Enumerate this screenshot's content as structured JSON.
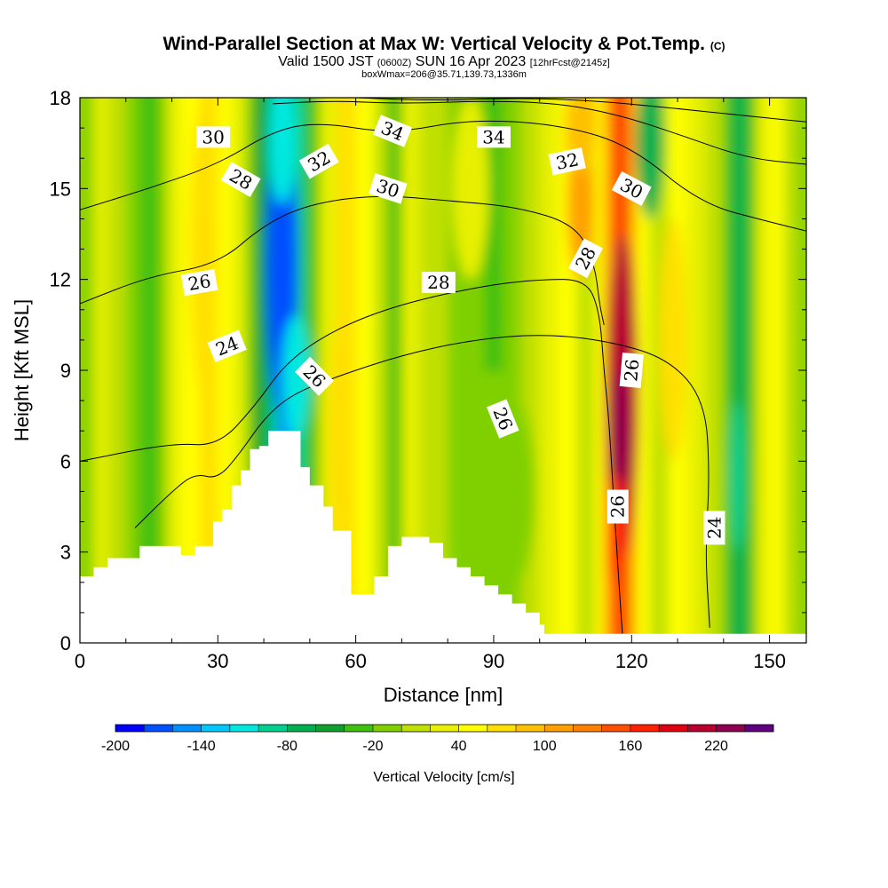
{
  "title": {
    "main": "Wind-Parallel Section at Max W: Vertical Velocity & Pot.Temp.",
    "main_tag": "(C)",
    "valid_a": "Valid 1500 JST",
    "valid_b": "(0600Z)",
    "valid_c": "SUN 16 Apr 2023",
    "valid_d": "[12hrFcst@2145z]",
    "sub": "boxWmax=206@35.71,139.73,1336m"
  },
  "chart_data": {
    "type": "heatmap",
    "xlabel": "Distance [nm]",
    "ylabel": "Height [Kft MSL]",
    "xlim": [
      0,
      158
    ],
    "ylim": [
      0,
      18
    ],
    "xticks": [
      "0",
      "30",
      "60",
      "90",
      "120",
      "150"
    ],
    "yticks": [
      "0",
      "3",
      "6",
      "9",
      "12",
      "15",
      "18"
    ],
    "colorbar": {
      "label": "Vertical Velocity [cm/s]",
      "min": -200,
      "max": 240,
      "step": 20,
      "tick_labels": [
        "-200",
        "-140",
        "-80",
        "-20",
        "40",
        "100",
        "160",
        "220"
      ],
      "colors": [
        "#0000ff",
        "#0050ff",
        "#0090ff",
        "#00c8ff",
        "#00e8e0",
        "#00d090",
        "#00b050",
        "#10a030",
        "#40c010",
        "#80d000",
        "#c0e000",
        "#e8f000",
        "#ffff00",
        "#ffe000",
        "#ffc000",
        "#ffa000",
        "#ff8000",
        "#ff5000",
        "#ff2000",
        "#e00010",
        "#b80030",
        "#900050",
        "#600080"
      ]
    },
    "updrafts_cm_s": [
      {
        "x": 118,
        "z_range": [
          2,
          14
        ],
        "peak": 230
      },
      {
        "x": 108,
        "z_range": [
          10,
          18
        ],
        "peak": 100
      }
    ],
    "downdrafts_cm_s": [
      {
        "x": 44,
        "z_range": [
          7,
          18
        ],
        "peak": -180
      },
      {
        "x": 143,
        "z_range": [
          2,
          12
        ],
        "peak": -90
      },
      {
        "x": 124,
        "z_range": [
          13,
          18
        ],
        "peak": -80
      }
    ],
    "terrain_kft": {
      "x": [
        0,
        3,
        6,
        9,
        13,
        16,
        19,
        22,
        25,
        28,
        29,
        31,
        33,
        35,
        37,
        39,
        41,
        45,
        48,
        50,
        53,
        55,
        59,
        61,
        64,
        67,
        70,
        73,
        76,
        79,
        82,
        85,
        88,
        91,
        94,
        97,
        100,
        101,
        158
      ],
      "z": [
        2.2,
        2.5,
        2.8,
        2.8,
        3.2,
        3.2,
        3.2,
        2.9,
        3.2,
        3.2,
        4.0,
        4.4,
        5.2,
        5.7,
        6.4,
        6.5,
        7.0,
        7.0,
        5.8,
        5.2,
        4.5,
        3.7,
        1.6,
        1.6,
        2.2,
        3.2,
        3.5,
        3.5,
        3.3,
        2.8,
        2.5,
        2.2,
        1.9,
        1.6,
        1.3,
        1.0,
        0.6,
        0.3,
        0.3
      ]
    },
    "theta_isolines_C": [
      {
        "level": 24,
        "points": [
          [
            12,
            3.8
          ],
          [
            20,
            5.0
          ],
          [
            25,
            5.6
          ],
          [
            30,
            5.4
          ],
          [
            35,
            6.3
          ],
          [
            40,
            7.4
          ],
          [
            46,
            8.2
          ],
          [
            56,
            8.8
          ],
          [
            70,
            9.5
          ],
          [
            85,
            10.0
          ],
          [
            100,
            10.2
          ],
          [
            114,
            10.0
          ],
          [
            128,
            9.4
          ],
          [
            136,
            8.0
          ],
          [
            137,
            5.5
          ],
          [
            136,
            3.0
          ],
          [
            137,
            0.5
          ]
        ]
      },
      {
        "level": 26,
        "points": [
          [
            0,
            6.0
          ],
          [
            20,
            6.6
          ],
          [
            30,
            6.5
          ],
          [
            38,
            7.8
          ],
          [
            45,
            9.3
          ],
          [
            56,
            10.4
          ],
          [
            70,
            11.2
          ],
          [
            88,
            11.8
          ],
          [
            100,
            12.0
          ],
          [
            110,
            12.0
          ],
          [
            113,
            11.0
          ],
          [
            114,
            9.0
          ],
          [
            115,
            7.5
          ],
          [
            116,
            5.0
          ],
          [
            117,
            2.5
          ],
          [
            118,
            0.3
          ]
        ]
      },
      {
        "level": 28,
        "points": [
          [
            0,
            11.2
          ],
          [
            15,
            12.1
          ],
          [
            30,
            12.5
          ],
          [
            40,
            13.8
          ],
          [
            50,
            14.5
          ],
          [
            65,
            14.8
          ],
          [
            80,
            14.6
          ],
          [
            95,
            14.4
          ],
          [
            108,
            13.8
          ],
          [
            112,
            12.5
          ],
          [
            113,
            11.2
          ],
          [
            114,
            10.5
          ]
        ]
      },
      {
        "level": 30,
        "points": [
          [
            0,
            14.3
          ],
          [
            15,
            15.0
          ],
          [
            30,
            15.8
          ],
          [
            42,
            16.9
          ],
          [
            52,
            17.2
          ],
          [
            68,
            16.8
          ],
          [
            85,
            17.3
          ],
          [
            105,
            17.1
          ],
          [
            120,
            16.4
          ],
          [
            135,
            14.5
          ],
          [
            150,
            13.9
          ],
          [
            158,
            13.6
          ]
        ]
      },
      {
        "level": 32,
        "points": [
          [
            42,
            17.8
          ],
          [
            55,
            17.9
          ],
          [
            70,
            17.8
          ],
          [
            90,
            17.9
          ],
          [
            105,
            17.8
          ],
          [
            118,
            17.4
          ],
          [
            130,
            16.8
          ],
          [
            145,
            16.0
          ],
          [
            158,
            15.8
          ]
        ]
      },
      {
        "level": 34,
        "points": [
          [
            60,
            18.0
          ],
          [
            78,
            17.9
          ],
          [
            95,
            18.0
          ],
          [
            112,
            17.9
          ],
          [
            126,
            17.7
          ],
          [
            145,
            17.4
          ],
          [
            158,
            17.2
          ]
        ]
      }
    ],
    "isoline_labels": [
      {
        "text": "30",
        "x": 29,
        "z": 16.7,
        "angle": 0
      },
      {
        "text": "28",
        "x": 35,
        "z": 15.3,
        "angle": 30
      },
      {
        "text": "32",
        "x": 52,
        "z": 15.9,
        "angle": -30
      },
      {
        "text": "34",
        "x": 68,
        "z": 16.9,
        "angle": 22
      },
      {
        "text": "30",
        "x": 67,
        "z": 15.0,
        "angle": 18
      },
      {
        "text": "34",
        "x": 90,
        "z": 16.7,
        "angle": 0
      },
      {
        "text": "32",
        "x": 106,
        "z": 15.9,
        "angle": -12
      },
      {
        "text": "30",
        "x": 120,
        "z": 15.0,
        "angle": 28
      },
      {
        "text": "26",
        "x": 26,
        "z": 11.9,
        "angle": -10
      },
      {
        "text": "28",
        "x": 78,
        "z": 11.9,
        "angle": 0
      },
      {
        "text": "28",
        "x": 110,
        "z": 12.7,
        "angle": -62
      },
      {
        "text": "24",
        "x": 32,
        "z": 9.8,
        "angle": -22
      },
      {
        "text": "26",
        "x": 51,
        "z": 8.8,
        "angle": 45
      },
      {
        "text": "26",
        "x": 92,
        "z": 7.4,
        "angle": 68
      },
      {
        "text": "26",
        "x": 120,
        "z": 9.0,
        "angle": -85
      },
      {
        "text": "26",
        "x": 117,
        "z": 4.5,
        "angle": -90
      },
      {
        "text": "24",
        "x": 138,
        "z": 3.8,
        "angle": -90
      }
    ]
  }
}
